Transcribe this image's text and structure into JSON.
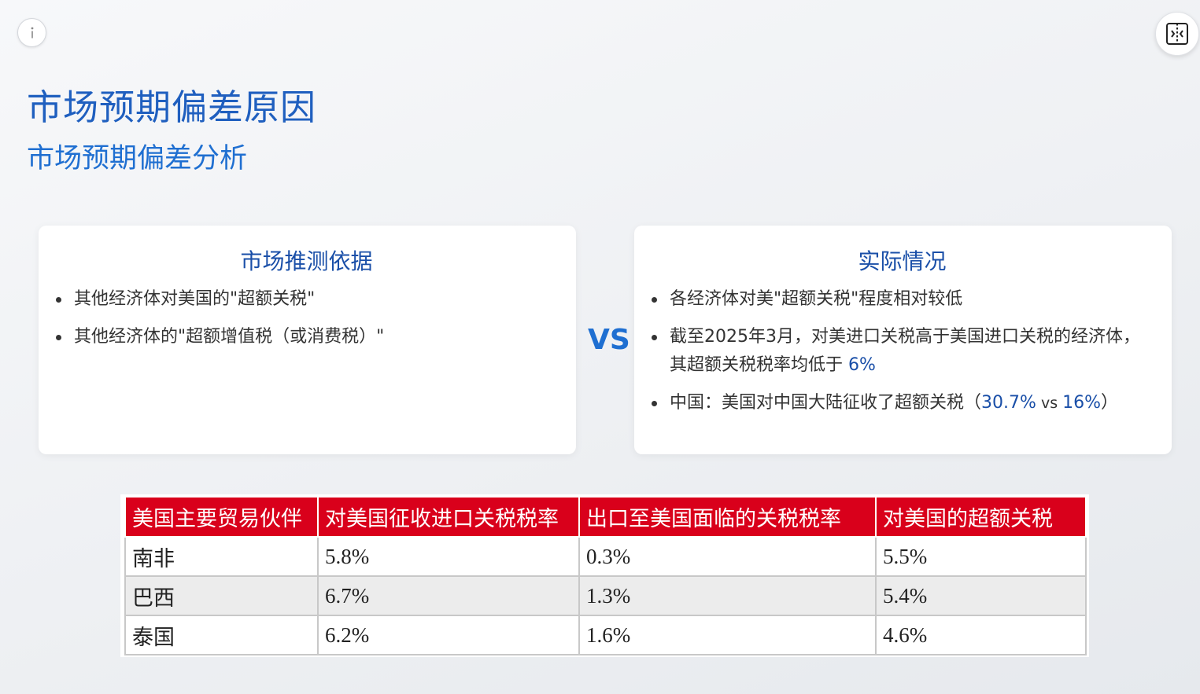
{
  "header": {
    "title": "市场预期偏差原因",
    "subtitle": "市场预期偏差分析"
  },
  "controls": {
    "info_icon": "info-icon",
    "split_icon": "split-view-icon"
  },
  "left_card": {
    "title": "市场推测依据",
    "items": [
      "其他经济体对美国的\"超额关税\"",
      "其他经济体的\"超额增值税（或消费税）\""
    ]
  },
  "vs_label": "VS",
  "right_card": {
    "title": "实际情况",
    "item1": "各经济体对美\"超额关税\"程度相对较低",
    "item2_text": "截至2025年3月，对美进口关税高于美国进口关税的经济体，其超额关税税率均低于 ",
    "item2_value": "6%",
    "item3_prefix": "中国：美国对中国大陆征收了超额关税（",
    "item3_value1": "30.7%",
    "item3_vs": " vs ",
    "item3_value2": "16%",
    "item3_suffix": "）"
  },
  "table": {
    "headers": [
      "美国主要贸易伙伴",
      "对美国征收进口关税税率",
      "出口至美国面临的关税税率",
      "对美国的超额关税"
    ],
    "rows": [
      [
        "南非",
        "5.8%",
        "0.3%",
        "5.5%"
      ],
      [
        "巴西",
        "6.7%",
        "1.3%",
        "5.4%"
      ],
      [
        "泰国",
        "6.2%",
        "1.6%",
        "4.6%"
      ]
    ]
  },
  "colors": {
    "title": "#1f5fbf",
    "accent": "#1a4fa8",
    "table_header": "#d9001b"
  }
}
